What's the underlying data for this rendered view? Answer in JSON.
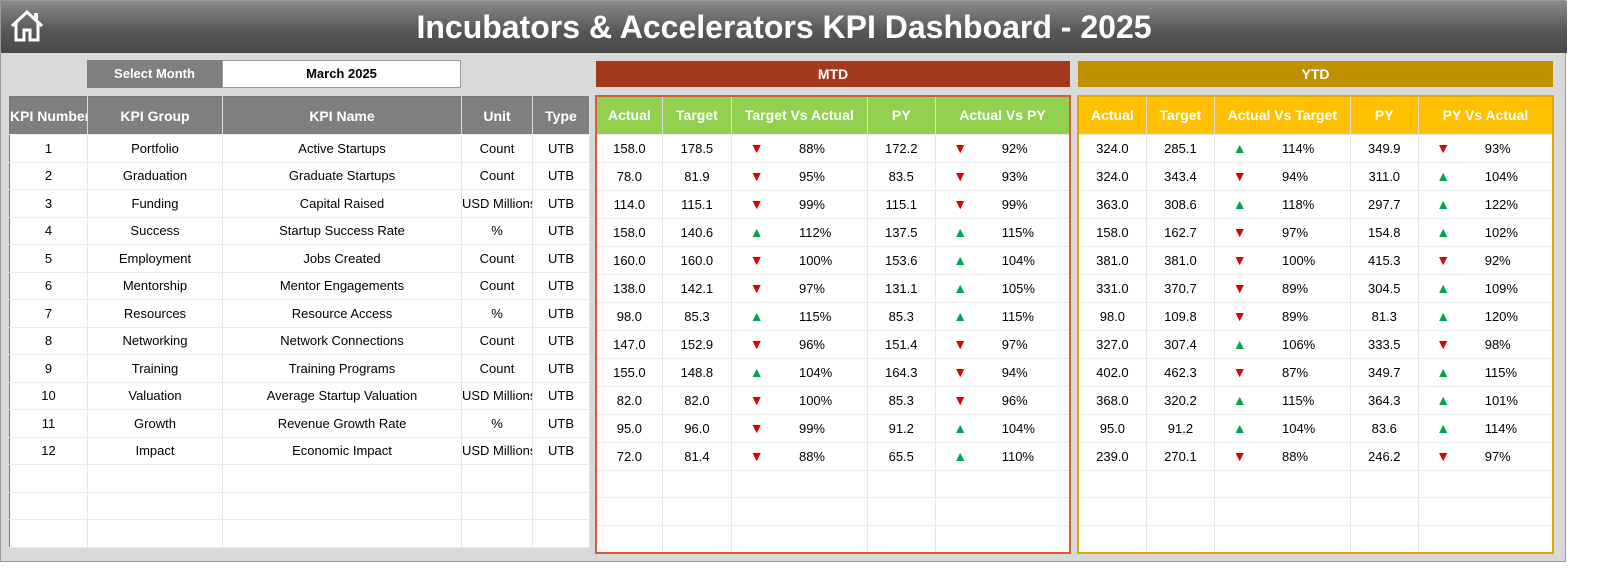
{
  "title": "Incubators & Accelerators KPI Dashboard - 2025",
  "select_month": {
    "label": "Select Month",
    "value": "March 2025"
  },
  "sections": {
    "mtd": "MTD",
    "ytd": "YTD"
  },
  "colors": {
    "mtd_band": "#a5391d",
    "mtd_header": "#92d050",
    "ytd_band": "#bf9000",
    "ytd_header": "#ffc000",
    "up": "#00a550",
    "down": "#e00000"
  },
  "left_headers": [
    "KPI Number",
    "KPI Group",
    "KPI Name",
    "Unit",
    "Type"
  ],
  "mtd_headers": [
    "Actual",
    "Target",
    "Target Vs Actual",
    "PY",
    "Actual Vs PY"
  ],
  "ytd_headers": [
    "Actual",
    "Target",
    "Actual Vs Target",
    "PY",
    "PY Vs Actual"
  ],
  "rows": [
    {
      "num": "1",
      "group": "Portfolio",
      "name": "Active Startups",
      "unit": "Count",
      "type": "UTB",
      "mtd": [
        "158.0",
        "178.5",
        "down",
        "88%",
        "172.2",
        "down",
        "92%"
      ],
      "ytd": [
        "324.0",
        "285.1",
        "up",
        "114%",
        "349.9",
        "down",
        "93%"
      ]
    },
    {
      "num": "2",
      "group": "Graduation",
      "name": "Graduate Startups",
      "unit": "Count",
      "type": "UTB",
      "mtd": [
        "78.0",
        "81.9",
        "down",
        "95%",
        "83.5",
        "down",
        "93%"
      ],
      "ytd": [
        "324.0",
        "343.4",
        "down",
        "94%",
        "311.0",
        "up",
        "104%"
      ]
    },
    {
      "num": "3",
      "group": "Funding",
      "name": "Capital Raised",
      "unit": "USD Millions",
      "type": "UTB",
      "mtd": [
        "114.0",
        "115.1",
        "down",
        "99%",
        "115.1",
        "down",
        "99%"
      ],
      "ytd": [
        "363.0",
        "308.6",
        "up",
        "118%",
        "297.7",
        "up",
        "122%"
      ]
    },
    {
      "num": "4",
      "group": "Success",
      "name": "Startup Success Rate",
      "unit": "%",
      "type": "UTB",
      "mtd": [
        "158.0",
        "140.6",
        "up",
        "112%",
        "137.5",
        "up",
        "115%"
      ],
      "ytd": [
        "158.0",
        "162.7",
        "down",
        "97%",
        "154.8",
        "up",
        "102%"
      ]
    },
    {
      "num": "5",
      "group": "Employment",
      "name": "Jobs Created",
      "unit": "Count",
      "type": "UTB",
      "mtd": [
        "160.0",
        "160.0",
        "down",
        "100%",
        "153.6",
        "up",
        "104%"
      ],
      "ytd": [
        "381.0",
        "381.0",
        "down",
        "100%",
        "415.3",
        "down",
        "92%"
      ]
    },
    {
      "num": "6",
      "group": "Mentorship",
      "name": "Mentor Engagements",
      "unit": "Count",
      "type": "UTB",
      "mtd": [
        "138.0",
        "142.1",
        "down",
        "97%",
        "131.1",
        "up",
        "105%"
      ],
      "ytd": [
        "331.0",
        "370.7",
        "down",
        "89%",
        "304.5",
        "up",
        "109%"
      ]
    },
    {
      "num": "7",
      "group": "Resources",
      "name": "Resource Access",
      "unit": "%",
      "type": "UTB",
      "mtd": [
        "98.0",
        "85.3",
        "up",
        "115%",
        "85.3",
        "up",
        "115%"
      ],
      "ytd": [
        "98.0",
        "109.8",
        "down",
        "89%",
        "81.3",
        "up",
        "120%"
      ]
    },
    {
      "num": "8",
      "group": "Networking",
      "name": "Network Connections",
      "unit": "Count",
      "type": "UTB",
      "mtd": [
        "147.0",
        "152.9",
        "down",
        "96%",
        "151.4",
        "down",
        "97%"
      ],
      "ytd": [
        "327.0",
        "307.4",
        "up",
        "106%",
        "333.5",
        "down",
        "98%"
      ]
    },
    {
      "num": "9",
      "group": "Training",
      "name": "Training Programs",
      "unit": "Count",
      "type": "UTB",
      "mtd": [
        "155.0",
        "148.8",
        "up",
        "104%",
        "164.3",
        "down",
        "94%"
      ],
      "ytd": [
        "402.0",
        "462.3",
        "down",
        "87%",
        "349.7",
        "up",
        "115%"
      ]
    },
    {
      "num": "10",
      "group": "Valuation",
      "name": "Average Startup Valuation",
      "unit": "USD Millions",
      "type": "UTB",
      "mtd": [
        "82.0",
        "82.0",
        "down",
        "100%",
        "85.3",
        "down",
        "96%"
      ],
      "ytd": [
        "368.0",
        "320.2",
        "up",
        "115%",
        "364.3",
        "up",
        "101%"
      ]
    },
    {
      "num": "11",
      "group": "Growth",
      "name": "Revenue Growth Rate",
      "unit": "%",
      "type": "UTB",
      "mtd": [
        "95.0",
        "96.0",
        "down",
        "99%",
        "91.2",
        "up",
        "104%"
      ],
      "ytd": [
        "95.0",
        "91.2",
        "up",
        "104%",
        "83.6",
        "up",
        "114%"
      ]
    },
    {
      "num": "12",
      "group": "Impact",
      "name": "Economic Impact",
      "unit": "USD Millions",
      "type": "UTB",
      "mtd": [
        "72.0",
        "81.4",
        "down",
        "88%",
        "65.5",
        "up",
        "110%"
      ],
      "ytd": [
        "239.0",
        "270.1",
        "down",
        "88%",
        "246.2",
        "down",
        "97%"
      ]
    }
  ]
}
